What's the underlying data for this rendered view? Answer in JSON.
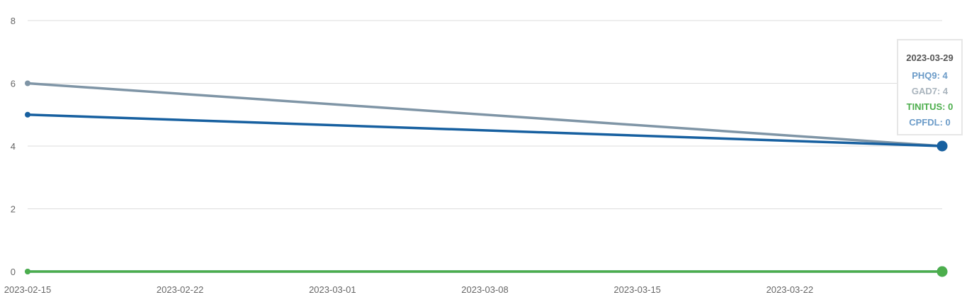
{
  "chart_data": {
    "type": "line",
    "x": [
      "2023-02-15",
      "2023-03-29"
    ],
    "x_ticks": [
      "2023-02-15",
      "2023-02-22",
      "2023-03-01",
      "2023-03-08",
      "2023-03-15",
      "2023-03-22"
    ],
    "ylim": [
      0,
      8
    ],
    "y_ticks": [
      0,
      2,
      4,
      6,
      8
    ],
    "grid": true,
    "series": [
      {
        "key": "gad7",
        "color": "#7f95a6",
        "values": [
          6,
          4
        ]
      },
      {
        "key": "phq9",
        "color": "#1760a0",
        "values": [
          5,
          4
        ]
      },
      {
        "key": "cpfdl",
        "color": "#5b93c7",
        "values": [
          0,
          0
        ]
      },
      {
        "key": "tinitus",
        "color": "#4cae4c",
        "values": [
          0,
          0
        ]
      }
    ]
  },
  "tooltip": {
    "date": "2023-03-29",
    "rows": [
      {
        "text": "PHQ9: 4",
        "color": "#6b9bc8"
      },
      {
        "text": "GAD7: 4",
        "color": "#a9b4bd"
      },
      {
        "text": "TINITUS: 0",
        "color": "#4cae4c"
      },
      {
        "text": "CPFDL: 0",
        "color": "#6b9bc8"
      }
    ]
  }
}
